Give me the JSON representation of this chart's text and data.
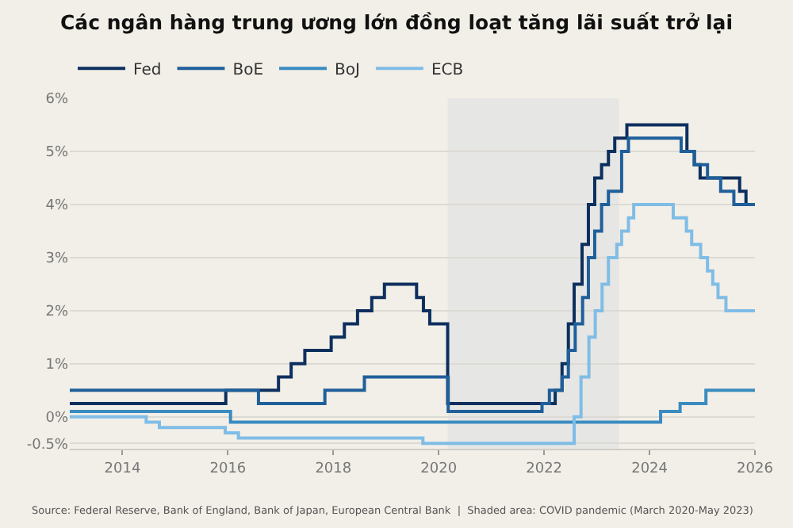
{
  "chart_data": {
    "type": "step",
    "title": "Các ngân hàng trung ương lớn đồng loạt tăng lãi suất trở lại",
    "xlim": [
      2013,
      2026
    ],
    "xticks": [
      2014,
      2016,
      2018,
      2020,
      2022,
      2024,
      2026
    ],
    "ylim": [
      -0.6,
      6
    ],
    "yticks": [
      {
        "value": -0.5,
        "label": "-0.5%"
      },
      {
        "value": 0,
        "label": "0%"
      },
      {
        "value": 1,
        "label": "1%"
      },
      {
        "value": 2,
        "label": "2%"
      },
      {
        "value": 3,
        "label": "3%"
      },
      {
        "value": 4,
        "label": "4%"
      },
      {
        "value": 5,
        "label": "5%"
      },
      {
        "value": 6,
        "label": "6%"
      }
    ],
    "grid": "y",
    "legend": "top left",
    "marker": "none",
    "line_style": "solid",
    "bands": [
      {
        "axis": "x",
        "from": 2020.17,
        "to": 2023.42,
        "color": "#e6e6e4"
      }
    ],
    "annotations": [
      "Source: Federal Reserve, Bank of England, Bank of Japan, European Central Bank  |  Shaded area: COVID pandemic (March 2020-May 2023)"
    ],
    "series": [
      {
        "name": "Fed",
        "color": "#0d2f5e",
        "x": [
          2013,
          2015.96,
          2016.96,
          2017.2,
          2017.46,
          2017.96,
          2018.21,
          2018.46,
          2018.73,
          2018.97,
          2019.58,
          2019.71,
          2019.83,
          2020.17,
          2022.21,
          2022.34,
          2022.46,
          2022.57,
          2022.72,
          2022.84,
          2022.96,
          2023.09,
          2023.22,
          2023.34,
          2023.57,
          2024.71,
          2024.85,
          2024.96,
          2025.71,
          2025.83,
          2026
        ],
        "values": [
          0.25,
          0.5,
          0.75,
          1.0,
          1.25,
          1.5,
          1.75,
          2.0,
          2.25,
          2.5,
          2.25,
          2.0,
          1.75,
          0.25,
          0.5,
          1.0,
          1.75,
          2.5,
          3.25,
          4.0,
          4.5,
          4.75,
          5.0,
          5.25,
          5.5,
          5.0,
          4.75,
          4.5,
          4.25,
          4.0,
          4.0
        ]
      },
      {
        "name": "BoE",
        "color": "#1f5f9a",
        "x": [
          2013,
          2016.58,
          2017.84,
          2018.59,
          2020.18,
          2021.96,
          2022.1,
          2022.34,
          2022.46,
          2022.59,
          2022.73,
          2022.84,
          2022.96,
          2023.09,
          2023.22,
          2023.47,
          2023.6,
          2024.6,
          2024.85,
          2025.1,
          2025.35,
          2025.6,
          2026
        ],
        "values": [
          0.5,
          0.25,
          0.5,
          0.75,
          0.1,
          0.25,
          0.5,
          0.75,
          1.25,
          1.75,
          2.25,
          3.0,
          3.5,
          4.0,
          4.25,
          5.0,
          5.25,
          5.0,
          4.75,
          4.5,
          4.25,
          4.0,
          4.0
        ]
      },
      {
        "name": "BoJ",
        "color": "#3a8cc0",
        "x": [
          2013,
          2016.05,
          2024.21,
          2024.58,
          2025.07,
          2026
        ],
        "values": [
          0.1,
          -0.1,
          0.1,
          0.25,
          0.5,
          0.5
        ]
      },
      {
        "name": "ECB",
        "color": "#7fbde6",
        "x": [
          2013,
          2014.45,
          2014.7,
          2015.95,
          2016.2,
          2019.7,
          2022.57,
          2022.7,
          2022.85,
          2022.97,
          2023.1,
          2023.22,
          2023.38,
          2023.47,
          2023.6,
          2023.7,
          2024.45,
          2024.7,
          2024.8,
          2024.97,
          2025.1,
          2025.2,
          2025.3,
          2025.45,
          2026
        ],
        "values": [
          0.0,
          -0.1,
          -0.2,
          -0.3,
          -0.4,
          -0.5,
          0.0,
          0.75,
          1.5,
          2.0,
          2.5,
          3.0,
          3.25,
          3.5,
          3.75,
          4.0,
          3.75,
          3.5,
          3.25,
          3.0,
          2.75,
          2.5,
          2.25,
          2.0,
          2.0
        ]
      }
    ]
  }
}
